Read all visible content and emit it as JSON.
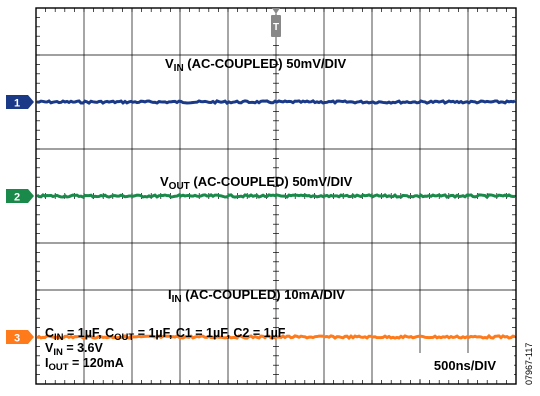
{
  "chart_data": {
    "type": "line",
    "title": "",
    "xlabel": "",
    "ylabel": "",
    "grid": true,
    "divisions": {
      "x": 10,
      "y": 8
    },
    "timebase": "500ns/DIV",
    "trigger_marker": "T",
    "series": [
      {
        "channel": "1",
        "color": "#1a3a87",
        "label_main": "V",
        "label_sub": "IN",
        "label_rest": " (AC-COUPLED) 50mV/DIV",
        "level_div": 6.0,
        "values_flat": true
      },
      {
        "channel": "2",
        "color": "#1a8a4a",
        "label_main": "V",
        "label_sub": "OUT",
        "label_rest": " (AC-COUPLED) 50mV/DIV",
        "level_div": 4.0,
        "values_flat": true
      },
      {
        "channel": "3",
        "color": "#ff7a1a",
        "label_main": "I",
        "label_sub": "IN",
        "label_rest": " (AC-COUPLED) 10mA/DIV",
        "level_div": 1.0,
        "values_flat": true
      }
    ]
  },
  "conditions": {
    "line1": {
      "c_in": "C",
      "c_in_sub": "IN",
      "c_in_val": " = 1µF, C",
      "c_out_sub": "OUT",
      "c_out_val": " = 1µF, C1 = 1µF, C2 = 1µF"
    },
    "line2": {
      "v": "V",
      "v_sub": "IN",
      "v_val": " = 3.6V"
    },
    "line3": {
      "i": "I",
      "i_sub": "OUT",
      "i_val": " = 120mA"
    }
  },
  "figure_id": "07967-117"
}
